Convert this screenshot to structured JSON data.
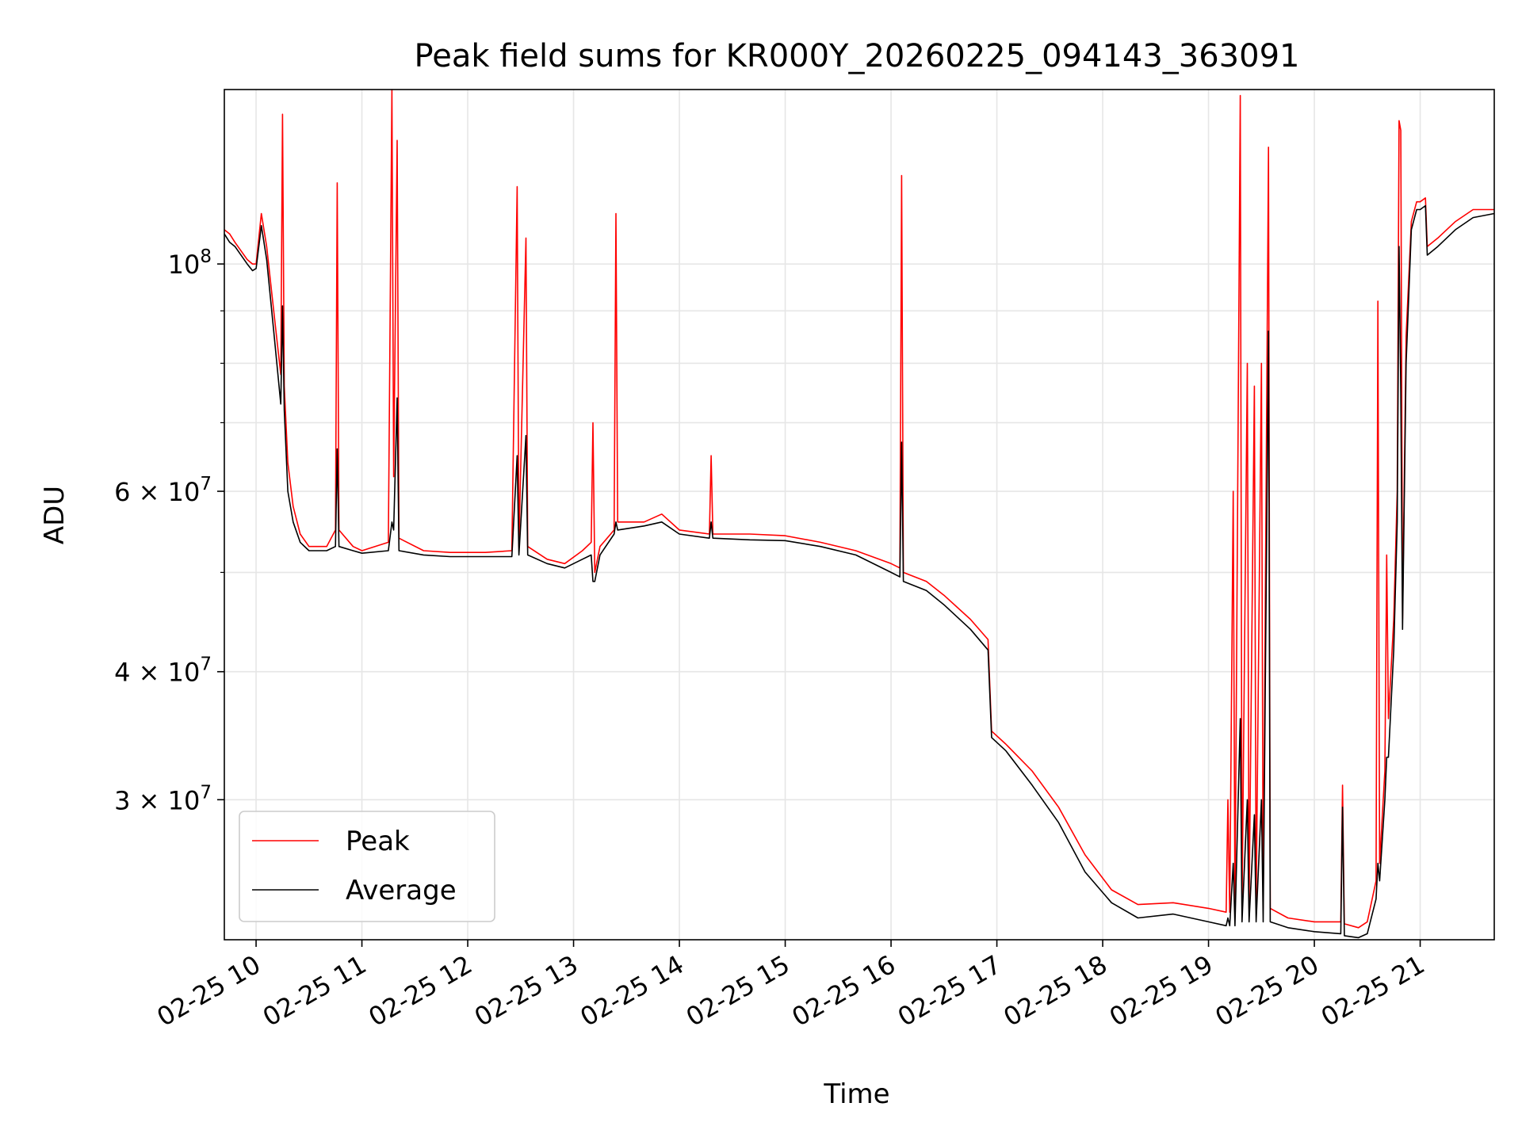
{
  "chart_data": {
    "type": "line",
    "title": "Peak field sums for KR000Y_20260225_094143_363091",
    "xlabel": "Time",
    "ylabel": "ADU",
    "yscale": "log",
    "xlim": [
      "02-25 09:42",
      "02-25 21:42"
    ],
    "ylim": [
      21900000,
      148000000
    ],
    "grid": true,
    "legend_position": "lower-left",
    "x_tick_labels": [
      "02-25 10",
      "02-25 11",
      "02-25 12",
      "02-25 13",
      "02-25 14",
      "02-25 15",
      "02-25 16",
      "02-25 17",
      "02-25 18",
      "02-25 19",
      "02-25 20",
      "02-25 21"
    ],
    "y_tick_labels": [
      {
        "value": 100000000,
        "base": "10",
        "exp": "8"
      },
      {
        "value": 60000000,
        "base": "6 × 10",
        "exp": "7"
      },
      {
        "value": 40000000,
        "base": "4 × 10",
        "exp": "7"
      },
      {
        "value": 30000000,
        "base": "3 × 10",
        "exp": "7"
      }
    ],
    "y_minor_ticks": [
      50000000,
      70000000,
      80000000,
      90000000
    ],
    "colors": {
      "peak": "#ff0000",
      "average": "#000000"
    },
    "series": [
      {
        "name": "Peak",
        "color": "#ff0000",
        "data": [
          [
            "02-25 09:42",
            108000000
          ],
          [
            "02-25 09:45",
            107000000
          ],
          [
            "02-25 09:48",
            105000000
          ],
          [
            "02-25 09:55",
            101000000
          ],
          [
            "02-25 09:58",
            100000000
          ],
          [
            "02-25 10:00",
            100000000
          ],
          [
            "02-25 10:03",
            112000000
          ],
          [
            "02-25 10:06",
            104000000
          ],
          [
            "02-25 10:10",
            90000000
          ],
          [
            "02-25 10:14",
            78000000
          ],
          [
            "02-25 10:15",
            140000000
          ],
          [
            "02-25 10:16",
            76000000
          ],
          [
            "02-25 10:18",
            64000000
          ],
          [
            "02-25 10:21",
            58000000
          ],
          [
            "02-25 10:25",
            54500000
          ],
          [
            "02-25 10:30",
            53000000
          ],
          [
            "02-25 10:40",
            53000000
          ],
          [
            "02-25 10:45",
            55000000
          ],
          [
            "02-25 10:46",
            120000000
          ],
          [
            "02-25 10:47",
            55000000
          ],
          [
            "02-25 10:55",
            53000000
          ],
          [
            "02-25 11:00",
            52500000
          ],
          [
            "02-25 11:15",
            53500000
          ],
          [
            "02-25 11:17",
            148000000
          ],
          [
            "02-25 11:18",
            62000000
          ],
          [
            "02-25 11:20",
            132000000
          ],
          [
            "02-25 11:21",
            54000000
          ],
          [
            "02-25 11:35",
            52500000
          ],
          [
            "02-25 11:50",
            52300000
          ],
          [
            "02-25 12:10",
            52300000
          ],
          [
            "02-25 12:25",
            52500000
          ],
          [
            "02-25 12:28",
            119000000
          ],
          [
            "02-25 12:29",
            53000000
          ],
          [
            "02-25 12:33",
            106000000
          ],
          [
            "02-25 12:34",
            53000000
          ],
          [
            "02-25 12:45",
            51500000
          ],
          [
            "02-25 12:55",
            51000000
          ],
          [
            "02-25 13:05",
            52500000
          ],
          [
            "02-25 13:10",
            53500000
          ],
          [
            "02-25 13:11",
            70000000
          ],
          [
            "02-25 13:12",
            50000000
          ],
          [
            "02-25 13:15",
            53000000
          ],
          [
            "02-25 13:23",
            55000000
          ],
          [
            "02-25 13:24",
            112000000
          ],
          [
            "02-25 13:25",
            56000000
          ],
          [
            "02-25 13:40",
            56000000
          ],
          [
            "02-25 13:50",
            57000000
          ],
          [
            "02-25 14:00",
            55000000
          ],
          [
            "02-25 14:17",
            54500000
          ],
          [
            "02-25 14:18",
            65000000
          ],
          [
            "02-25 14:19",
            54500000
          ],
          [
            "02-25 14:40",
            54500000
          ],
          [
            "02-25 15:00",
            54300000
          ],
          [
            "02-25 15:20",
            53500000
          ],
          [
            "02-25 15:40",
            52500000
          ],
          [
            "02-25 16:00",
            51000000
          ],
          [
            "02-25 16:05",
            50500000
          ],
          [
            "02-25 16:06",
            122000000
          ],
          [
            "02-25 16:07",
            50000000
          ],
          [
            "02-25 16:20",
            49000000
          ],
          [
            "02-25 16:30",
            47500000
          ],
          [
            "02-25 16:45",
            45000000
          ],
          [
            "02-25 16:55",
            43000000
          ],
          [
            "02-25 16:57",
            35000000
          ],
          [
            "02-25 17:05",
            34000000
          ],
          [
            "02-25 17:20",
            32000000
          ],
          [
            "02-25 17:35",
            29500000
          ],
          [
            "02-25 17:50",
            26500000
          ],
          [
            "02-25 18:05",
            24500000
          ],
          [
            "02-25 18:20",
            23700000
          ],
          [
            "02-25 18:40",
            23800000
          ],
          [
            "02-25 19:00",
            23500000
          ],
          [
            "02-25 19:10",
            23300000
          ],
          [
            "02-25 19:11",
            30000000
          ],
          [
            "02-25 19:12",
            23300000
          ],
          [
            "02-25 19:14",
            60000000
          ],
          [
            "02-25 19:15",
            23300000
          ],
          [
            "02-25 19:18",
            146000000
          ],
          [
            "02-25 19:19",
            23500000
          ],
          [
            "02-25 19:22",
            80000000
          ],
          [
            "02-25 19:23",
            23500000
          ],
          [
            "02-25 19:26",
            76000000
          ],
          [
            "02-25 19:27",
            23500000
          ],
          [
            "02-25 19:30",
            80000000
          ],
          [
            "02-25 19:31",
            23500000
          ],
          [
            "02-25 19:34",
            130000000
          ],
          [
            "02-25 19:35",
            23500000
          ],
          [
            "02-25 19:45",
            23000000
          ],
          [
            "02-25 20:00",
            22800000
          ],
          [
            "02-25 20:15",
            22800000
          ],
          [
            "02-25 20:16",
            31000000
          ],
          [
            "02-25 20:17",
            22700000
          ],
          [
            "02-25 20:25",
            22500000
          ],
          [
            "02-25 20:30",
            22800000
          ],
          [
            "02-25 20:35",
            25000000
          ],
          [
            "02-25 20:36",
            92000000
          ],
          [
            "02-25 20:37",
            26000000
          ],
          [
            "02-25 20:40",
            32000000
          ],
          [
            "02-25 20:41",
            52000000
          ],
          [
            "02-25 20:42",
            36000000
          ],
          [
            "02-25 20:45",
            45000000
          ],
          [
            "02-25 20:47",
            60000000
          ],
          [
            "02-25 20:48",
            138000000
          ],
          [
            "02-25 20:49",
            135000000
          ],
          [
            "02-25 20:50",
            45000000
          ],
          [
            "02-25 20:52",
            85000000
          ],
          [
            "02-25 20:55",
            110000000
          ],
          [
            "02-25 20:58",
            115000000
          ],
          [
            "02-25 21:00",
            115000000
          ],
          [
            "02-25 21:03",
            116000000
          ],
          [
            "02-25 21:04",
            104000000
          ],
          [
            "02-25 21:10",
            106000000
          ],
          [
            "02-25 21:20",
            110000000
          ],
          [
            "02-25 21:30",
            113000000
          ],
          [
            "02-25 21:42",
            113000000
          ]
        ]
      },
      {
        "name": "Average",
        "color": "#000000",
        "data": [
          [
            "02-25 09:42",
            107000000
          ],
          [
            "02-25 09:45",
            105000000
          ],
          [
            "02-25 09:48",
            104000000
          ],
          [
            "02-25 09:55",
            100000000
          ],
          [
            "02-25 09:58",
            98500000
          ],
          [
            "02-25 10:00",
            99000000
          ],
          [
            "02-25 10:03",
            109000000
          ],
          [
            "02-25 10:06",
            101000000
          ],
          [
            "02-25 10:10",
            86000000
          ],
          [
            "02-25 10:14",
            73000000
          ],
          [
            "02-25 10:15",
            91000000
          ],
          [
            "02-25 10:16",
            72000000
          ],
          [
            "02-25 10:18",
            60000000
          ],
          [
            "02-25 10:21",
            56000000
          ],
          [
            "02-25 10:25",
            53500000
          ],
          [
            "02-25 10:30",
            52500000
          ],
          [
            "02-25 10:40",
            52500000
          ],
          [
            "02-25 10:45",
            53000000
          ],
          [
            "02-25 10:46",
            66000000
          ],
          [
            "02-25 10:47",
            53000000
          ],
          [
            "02-25 10:55",
            52500000
          ],
          [
            "02-25 11:00",
            52200000
          ],
          [
            "02-25 11:15",
            52500000
          ],
          [
            "02-25 11:17",
            56000000
          ],
          [
            "02-25 11:18",
            55000000
          ],
          [
            "02-25 11:20",
            74000000
          ],
          [
            "02-25 11:21",
            52500000
          ],
          [
            "02-25 11:35",
            52000000
          ],
          [
            "02-25 11:50",
            51800000
          ],
          [
            "02-25 12:10",
            51800000
          ],
          [
            "02-25 12:25",
            51800000
          ],
          [
            "02-25 12:28",
            65000000
          ],
          [
            "02-25 12:29",
            52000000
          ],
          [
            "02-25 12:33",
            68000000
          ],
          [
            "02-25 12:34",
            52000000
          ],
          [
            "02-25 12:45",
            51000000
          ],
          [
            "02-25 12:55",
            50500000
          ],
          [
            "02-25 13:05",
            51500000
          ],
          [
            "02-25 13:10",
            52000000
          ],
          [
            "02-25 13:11",
            49000000
          ],
          [
            "02-25 13:12",
            49000000
          ],
          [
            "02-25 13:15",
            52000000
          ],
          [
            "02-25 13:23",
            54500000
          ],
          [
            "02-25 13:24",
            56000000
          ],
          [
            "02-25 13:25",
            55000000
          ],
          [
            "02-25 13:40",
            55500000
          ],
          [
            "02-25 13:50",
            56000000
          ],
          [
            "02-25 14:00",
            54500000
          ],
          [
            "02-25 14:17",
            54000000
          ],
          [
            "02-25 14:18",
            56000000
          ],
          [
            "02-25 14:19",
            54000000
          ],
          [
            "02-25 14:40",
            53800000
          ],
          [
            "02-25 15:00",
            53700000
          ],
          [
            "02-25 15:20",
            53000000
          ],
          [
            "02-25 15:40",
            52000000
          ],
          [
            "02-25 16:00",
            50000000
          ],
          [
            "02-25 16:05",
            49500000
          ],
          [
            "02-25 16:06",
            67000000
          ],
          [
            "02-25 16:07",
            49000000
          ],
          [
            "02-25 16:20",
            48000000
          ],
          [
            "02-25 16:30",
            46500000
          ],
          [
            "02-25 16:45",
            44000000
          ],
          [
            "02-25 16:55",
            42000000
          ],
          [
            "02-25 16:57",
            34500000
          ],
          [
            "02-25 17:05",
            33500000
          ],
          [
            "02-25 17:20",
            31000000
          ],
          [
            "02-25 17:35",
            28500000
          ],
          [
            "02-25 17:50",
            25500000
          ],
          [
            "02-25 18:05",
            23800000
          ],
          [
            "02-25 18:20",
            23000000
          ],
          [
            "02-25 18:40",
            23200000
          ],
          [
            "02-25 19:00",
            22800000
          ],
          [
            "02-25 19:10",
            22600000
          ],
          [
            "02-25 19:11",
            23000000
          ],
          [
            "02-25 19:12",
            22600000
          ],
          [
            "02-25 19:14",
            26000000
          ],
          [
            "02-25 19:15",
            22600000
          ],
          [
            "02-25 19:18",
            36000000
          ],
          [
            "02-25 19:19",
            22800000
          ],
          [
            "02-25 19:22",
            30000000
          ],
          [
            "02-25 19:23",
            22800000
          ],
          [
            "02-25 19:26",
            29000000
          ],
          [
            "02-25 19:27",
            22800000
          ],
          [
            "02-25 19:30",
            30000000
          ],
          [
            "02-25 19:31",
            22800000
          ],
          [
            "02-25 19:34",
            86000000
          ],
          [
            "02-25 19:35",
            22800000
          ],
          [
            "02-25 19:45",
            22500000
          ],
          [
            "02-25 20:00",
            22300000
          ],
          [
            "02-25 20:15",
            22200000
          ],
          [
            "02-25 20:16",
            29500000
          ],
          [
            "02-25 20:17",
            22100000
          ],
          [
            "02-25 20:25",
            22000000
          ],
          [
            "02-25 20:30",
            22200000
          ],
          [
            "02-25 20:35",
            24000000
          ],
          [
            "02-25 20:36",
            26000000
          ],
          [
            "02-25 20:37",
            25000000
          ],
          [
            "02-25 20:40",
            30000000
          ],
          [
            "02-25 20:41",
            33000000
          ],
          [
            "02-25 20:42",
            33000000
          ],
          [
            "02-25 20:45",
            42000000
          ],
          [
            "02-25 20:47",
            56000000
          ],
          [
            "02-25 20:48",
            104000000
          ],
          [
            "02-25 20:49",
            75000000
          ],
          [
            "02-25 20:50",
            44000000
          ],
          [
            "02-25 20:52",
            80000000
          ],
          [
            "02-25 20:55",
            108000000
          ],
          [
            "02-25 20:58",
            113000000
          ],
          [
            "02-25 21:00",
            113000000
          ],
          [
            "02-25 21:03",
            114000000
          ],
          [
            "02-25 21:04",
            102000000
          ],
          [
            "02-25 21:10",
            104000000
          ],
          [
            "02-25 21:20",
            108000000
          ],
          [
            "02-25 21:30",
            111000000
          ],
          [
            "02-25 21:42",
            112000000
          ]
        ]
      }
    ]
  }
}
